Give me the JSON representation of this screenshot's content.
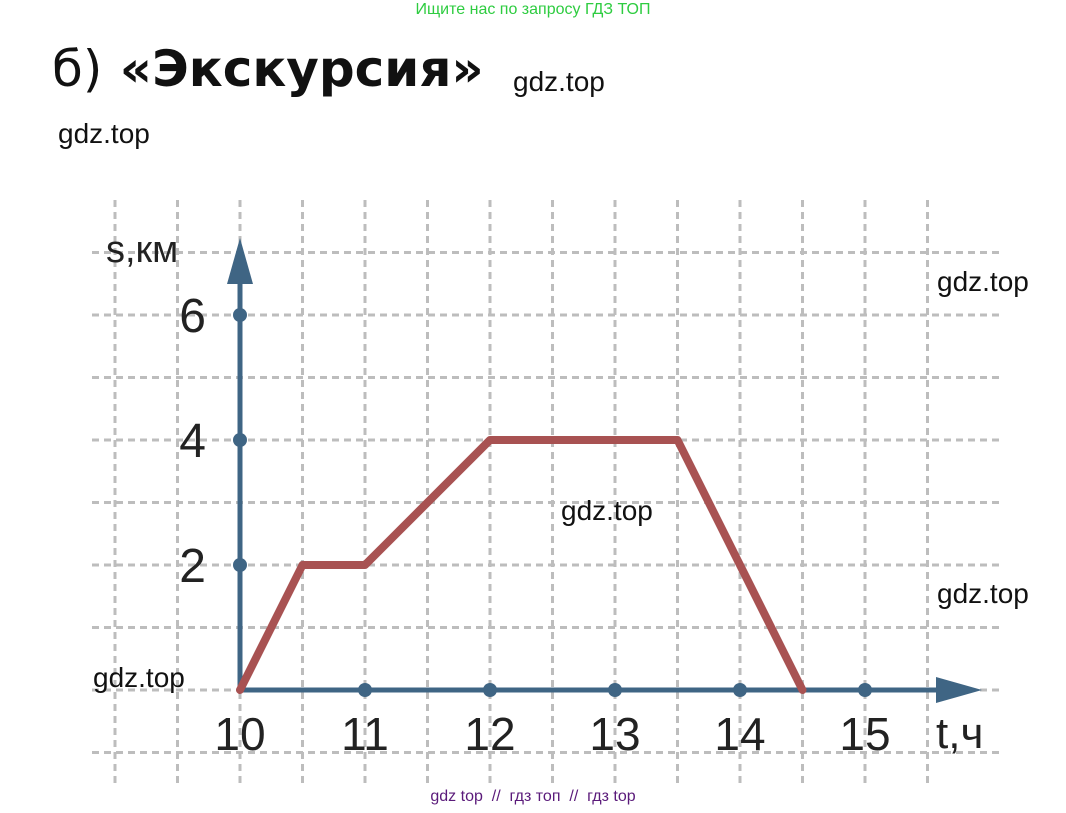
{
  "banner": "Ищите нас по запросу ГДЗ ТОП",
  "heading": {
    "prefix": "б)",
    "title": "«Экскурсия»"
  },
  "watermarks": [
    "gdz.top",
    "gdz.top",
    "gdz.top",
    "gdz.top",
    "gdz.top",
    "gdz.top"
  ],
  "footer": "gdz top  //  гдз топ  //  гдз top",
  "colors": {
    "axis": "#3f6584",
    "line": "#a85252",
    "grid": "#bdbdbd",
    "banner": "#2ecc40",
    "footer": "#5a1a7a"
  },
  "chart_data": {
    "type": "line",
    "xlabel": "t,ч",
    "ylabel": "s,км",
    "xlim": [
      10,
      15
    ],
    "ylim": [
      0,
      6
    ],
    "x_ticks": [
      "10",
      "11",
      "12",
      "13",
      "14",
      "15"
    ],
    "y_ticks": [
      "2",
      "4",
      "6"
    ],
    "grid": true,
    "series": [
      {
        "x": [
          10,
          10.5,
          11,
          12,
          13.5,
          14.5
        ],
        "y": [
          0,
          2,
          2,
          4,
          4,
          0
        ]
      }
    ]
  }
}
